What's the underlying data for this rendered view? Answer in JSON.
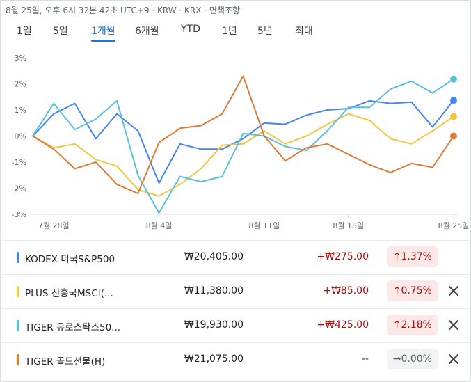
{
  "header": {
    "timestamp": "8월 25일, 오후 6시 32분 42초 UTC+9 · KRW · KRX · 면책조항"
  },
  "tabs": [
    {
      "label": "1일",
      "active": false
    },
    {
      "label": "5일",
      "active": false
    },
    {
      "label": "1개월",
      "active": true
    },
    {
      "label": "6개월",
      "active": false
    },
    {
      "label": "YTD",
      "active": false
    },
    {
      "label": "1년",
      "active": false
    },
    {
      "label": "5년",
      "active": false
    },
    {
      "label": "최대",
      "active": false
    }
  ],
  "chart_data": {
    "type": "line",
    "x": [
      "7월 25일",
      "7월 28일",
      "7월 29일",
      "7월 30일",
      "7월 31일",
      "8월 1일",
      "8월 4일",
      "8월 5일",
      "8월 6일",
      "8월 7일",
      "8월 8일",
      "8월 11일",
      "8월 12일",
      "8월 13일",
      "8월 14일",
      "8월 18일",
      "8월 19일",
      "8월 20일",
      "8월 21일",
      "8월 22일",
      "8월 25일"
    ],
    "x_ticks": [
      "7월 28일",
      "8월 4일",
      "8월 11일",
      "8월 18일",
      "8월 25일"
    ],
    "y_ticks": [
      "3%",
      "2%",
      "1%",
      "0%",
      "-1%",
      "-2%",
      "-3%"
    ],
    "ylim": [
      -3,
      3
    ],
    "grid": false,
    "zero_line": true,
    "series": [
      {
        "name": "KODEX 미국S&P500",
        "color": "#4285f4",
        "values": [
          0.0,
          0.85,
          1.25,
          -0.1,
          0.85,
          0.2,
          -1.8,
          -0.3,
          -0.5,
          -0.5,
          -0.1,
          0.5,
          0.45,
          0.8,
          1.0,
          1.05,
          1.35,
          1.25,
          1.3,
          0.35,
          1.37
        ]
      },
      {
        "name": "PLUS 신흥국MSCI(...",
        "color": "#f4c542",
        "values": [
          0.0,
          -0.45,
          -0.3,
          -0.9,
          -1.15,
          -2.05,
          -2.3,
          -1.85,
          -1.25,
          -0.35,
          -0.3,
          0.2,
          -0.3,
          0.0,
          0.45,
          0.85,
          0.6,
          -0.1,
          -0.3,
          0.2,
          0.75
        ]
      },
      {
        "name": "TIGER 유로스탁스50...",
        "color": "#5bc0de",
        "values": [
          0.0,
          1.25,
          0.25,
          0.65,
          1.35,
          -1.5,
          -2.95,
          -1.55,
          -1.75,
          -1.55,
          0.1,
          0.0,
          -0.4,
          -0.55,
          0.2,
          1.1,
          1.1,
          1.8,
          2.1,
          1.65,
          2.18
        ]
      },
      {
        "name": "TIGER 골드선물(H)",
        "color": "#e07a33",
        "values": [
          0.0,
          -0.5,
          -1.25,
          -1.0,
          -1.85,
          -2.2,
          -0.25,
          0.3,
          0.4,
          0.85,
          2.3,
          0.0,
          -0.95,
          -0.45,
          -0.3,
          -0.7,
          -1.1,
          -1.4,
          -1.05,
          -1.2,
          0.0
        ]
      }
    ]
  },
  "rows": [
    {
      "name": "KODEX 미국S&P500",
      "color": "#4285f4",
      "price": "₩20,405.00",
      "change": "+₩275.00",
      "pct": "↑1.37%",
      "neutral": false,
      "removable": false
    },
    {
      "name": "PLUS 신흥국MSCI(...",
      "color": "#f4c542",
      "price": "₩11,380.00",
      "change": "+₩85.00",
      "pct": "↑0.75%",
      "neutral": false,
      "removable": true
    },
    {
      "name": "TIGER 유로스탁스50...",
      "color": "#5bc0de",
      "price": "₩19,930.00",
      "change": "+₩425.00",
      "pct": "↑2.18%",
      "neutral": false,
      "removable": true
    },
    {
      "name": "TIGER 골드선물(H)",
      "color": "#e07a33",
      "price": "₩21,075.00",
      "change": "--",
      "pct": "→0.00%",
      "neutral": true,
      "removable": true
    }
  ]
}
